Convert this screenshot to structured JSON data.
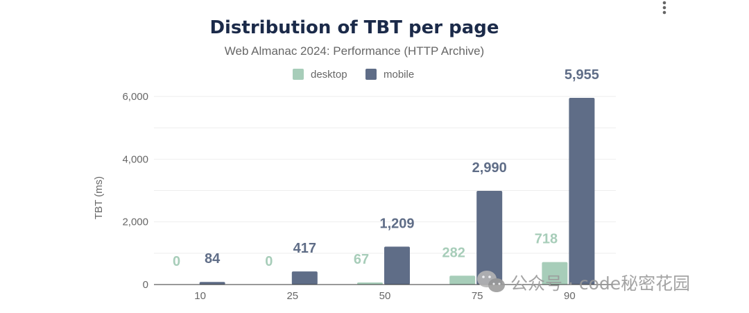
{
  "menu": {
    "icon": "more-vertical-icon"
  },
  "watermark": {
    "icon": "wechat-icon",
    "text": "公众号 · code秘密花园"
  },
  "colors": {
    "desktop": "#a7cdb9",
    "mobile": "#5f6d87",
    "title": "#1b2a49",
    "subtitle": "#666666"
  },
  "chart_data": {
    "type": "bar",
    "title": "Distribution of TBT per page",
    "subtitle": "Web Almanac 2024: Performance (HTTP Archive)",
    "xlabel": "",
    "ylabel": "TBT (ms)",
    "categories": [
      "10",
      "25",
      "50",
      "75",
      "90"
    ],
    "series": [
      {
        "name": "desktop",
        "values": [
          0,
          0,
          67,
          282,
          718
        ],
        "labels": [
          "0",
          "0",
          "67",
          "282",
          "718"
        ]
      },
      {
        "name": "mobile",
        "values": [
          84,
          417,
          1209,
          2990,
          5955
        ],
        "labels": [
          "84",
          "417",
          "1,209",
          "2,990",
          "5,955"
        ]
      }
    ],
    "ylim": [
      0,
      6000
    ],
    "yticks": [
      0,
      2000,
      4000,
      6000
    ],
    "ytick_labels": [
      "0",
      "2,000",
      "4,000",
      "6,000"
    ],
    "grid": true,
    "legend_position": "top-center"
  }
}
